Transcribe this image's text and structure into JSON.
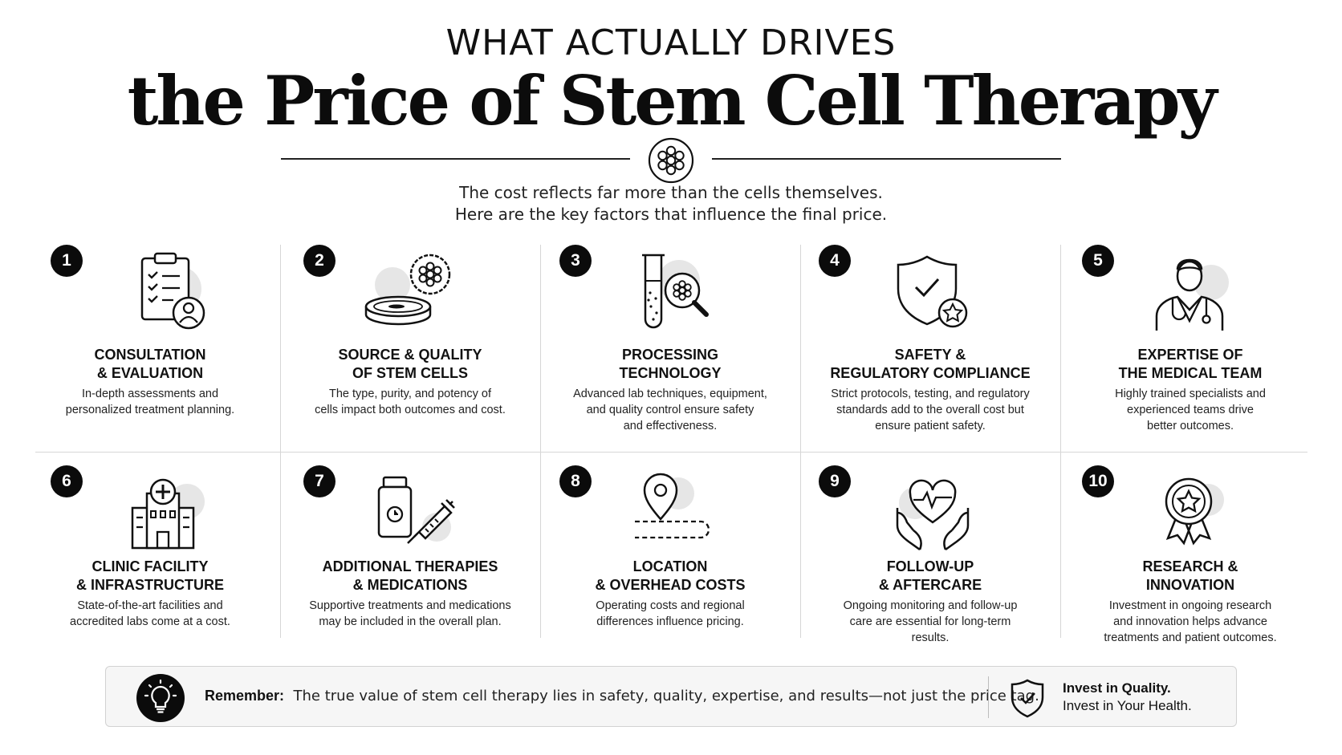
{
  "header": {
    "kicker": "WHAT ACTUALLY DRIVES",
    "title": "the Price of Stem Cell Therapy",
    "subtitle_line1": "The cost reflects far more than the cells themselves.",
    "subtitle_line2": "Here are the key factors that influence the final price."
  },
  "factors": [
    {
      "number": "1",
      "title": "CONSULTATION\n& EVALUATION",
      "description": "In-depth assessments and\npersonalized treatment planning.",
      "icon": "clipboard-person-icon"
    },
    {
      "number": "2",
      "title": "SOURCE & QUALITY\nOF STEM CELLS",
      "description": "The type, purity, and potency of\ncells impact both outcomes and cost.",
      "icon": "petri-dish-cells-icon"
    },
    {
      "number": "3",
      "title": "PROCESSING\nTECHNOLOGY",
      "description": "Advanced lab techniques, equipment,\nand quality control ensure safety\nand effectiveness.",
      "icon": "test-tube-magnifier-icon"
    },
    {
      "number": "4",
      "title": "SAFETY &\nREGULATORY COMPLIANCE",
      "description": "Strict protocols, testing, and regulatory\nstandards add to the overall cost but\nensure patient safety.",
      "icon": "shield-check-star-icon"
    },
    {
      "number": "5",
      "title": "EXPERTISE OF\nTHE MEDICAL TEAM",
      "description": "Highly trained specialists and\nexperienced teams drive\nbetter outcomes.",
      "icon": "doctor-icon"
    },
    {
      "number": "6",
      "title": "CLINIC FACILITY\n& INFRASTRUCTURE",
      "description": "State-of-the-art facilities and\naccredited labs come at a cost.",
      "icon": "hospital-building-icon"
    },
    {
      "number": "7",
      "title": "ADDITIONAL THERAPIES\n& MEDICATIONS",
      "description": "Supportive treatments and medications\nmay be included in the overall plan.",
      "icon": "medicine-bottle-syringe-icon"
    },
    {
      "number": "8",
      "title": "LOCATION\n& OVERHEAD COSTS",
      "description": "Operating costs and regional\ndifferences influence pricing.",
      "icon": "location-pin-icon"
    },
    {
      "number": "9",
      "title": "FOLLOW-UP\n& AFTERCARE",
      "description": "Ongoing monitoring and follow-up\ncare are essential for long-term\nresults.",
      "icon": "heart-hands-icon"
    },
    {
      "number": "10",
      "title": "RESEARCH &\nINNOVATION",
      "description": "Investment in ongoing research\nand innovation helps advance\ntreatments and patient outcomes.",
      "icon": "award-ribbon-icon"
    }
  ],
  "footer": {
    "remember_label": "Remember:",
    "remember_text": "The true value of stem cell therapy lies in safety, quality, expertise, and results—not just the price tag.",
    "invest_line1": "Invest in Quality.",
    "invest_line2": "Invest in Your Health."
  },
  "colors": {
    "ink": "#111111",
    "badge": "#0b0b0b",
    "icon_shadow": "#e6e6e6",
    "footer_bg": "#f6f6f6",
    "divider": "#d6d6d6"
  }
}
